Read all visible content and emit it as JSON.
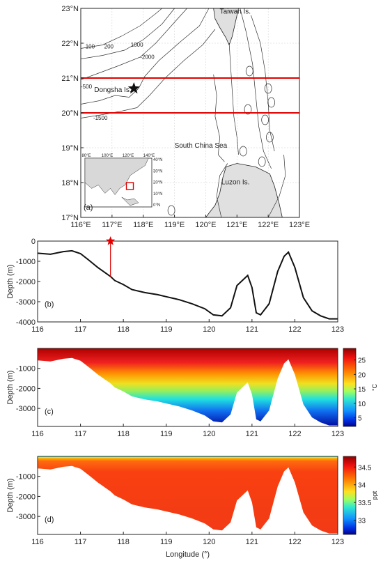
{
  "chart_data": [
    {
      "panel": "(a)",
      "type": "map",
      "x_ticks": [
        "116°E",
        "117°E",
        "118°E",
        "119°E",
        "120°E",
        "121°E",
        "122°E",
        "123°E"
      ],
      "y_ticks": [
        "17°N",
        "18°N",
        "19°N",
        "20°N",
        "21°N",
        "22°N",
        "23°N"
      ],
      "xlim": [
        116,
        123
      ],
      "ylim": [
        17,
        23
      ],
      "section_lines_lat": [
        21,
        20
      ],
      "station": {
        "label": "Dongsha Is.",
        "lon": 117.7,
        "lat": 20.7
      },
      "place_labels": [
        {
          "text": "Taiwan Is.",
          "lon": 120.45,
          "lat": 22.85
        },
        {
          "text": "South China Sea",
          "lon": 119.0,
          "lat": 19.0
        },
        {
          "text": "Luzon Is.",
          "lon": 120.5,
          "lat": 17.95
        }
      ],
      "contour_labels": [
        {
          "text": "100",
          "lon": 116.15,
          "lat": 21.85
        },
        {
          "text": "200",
          "lon": 116.75,
          "lat": 21.85
        },
        {
          "text": "1000",
          "lon": 117.6,
          "lat": 21.9
        },
        {
          "text": "-2000",
          "lon": 117.9,
          "lat": 21.55
        },
        {
          "text": "-500",
          "lon": 116.0,
          "lat": 20.7
        },
        {
          "text": "-1500",
          "lon": 116.4,
          "lat": 19.8
        }
      ],
      "inset": {
        "x_ticks": [
          "80°E",
          "100°E",
          "120°E",
          "140°E"
        ],
        "y_ticks": [
          "40°N",
          "30°N",
          "20°N",
          "10°N",
          "0°N"
        ]
      }
    },
    {
      "panel": "(b)",
      "type": "line",
      "ylabel": "Depth (m)",
      "xlim": [
        116,
        123
      ],
      "ylim": [
        -4000,
        0
      ],
      "x_ticks": [
        "116",
        "117",
        "118",
        "119",
        "120",
        "121",
        "122",
        "123"
      ],
      "y_ticks": [
        "0",
        "-1000",
        "-2000",
        "-3000",
        "-4000"
      ],
      "series": [
        {
          "x": [
            116.0,
            116.3,
            116.6,
            116.8,
            117.0,
            117.2,
            117.4,
            117.6,
            117.7,
            117.8,
            118.0,
            118.2,
            118.5,
            118.8,
            119.0,
            119.3,
            119.6,
            119.9,
            120.1,
            120.3,
            120.5,
            120.65,
            120.8,
            120.9,
            121.0,
            121.1,
            121.2,
            121.4,
            121.6,
            121.75,
            121.85,
            122.0,
            122.2,
            122.4,
            122.6,
            122.8,
            123.0
          ],
          "y": [
            -600,
            -650,
            -520,
            -480,
            -620,
            -950,
            -1300,
            -1600,
            -1750,
            -1950,
            -2150,
            -2400,
            -2550,
            -2650,
            -2750,
            -2900,
            -3100,
            -3350,
            -3650,
            -3700,
            -3300,
            -2200,
            -1900,
            -1700,
            -2300,
            -3550,
            -3650,
            -3100,
            -1500,
            -750,
            -550,
            -1300,
            -2800,
            -3450,
            -3700,
            -3850,
            -3850
          ]
        }
      ],
      "station": {
        "x": 117.7,
        "y": 0
      }
    },
    {
      "panel": "(c)",
      "type": "heatmap",
      "ylabel": "Depth (m)",
      "colorbar_unit": "°C",
      "colorbar_ticks": [
        "25",
        "20",
        "15",
        "10",
        "5"
      ],
      "clim": [
        2,
        29
      ],
      "x_ticks": [
        "116",
        "117",
        "118",
        "119",
        "120",
        "121",
        "122",
        "123"
      ],
      "y_ticks": [
        "-1000",
        "-2000",
        "-3000"
      ]
    },
    {
      "panel": "(d)",
      "type": "heatmap",
      "ylabel": "Depth (m)",
      "xlabel": "Longitude (°)",
      "colorbar_unit": "ppt",
      "colorbar_ticks": [
        "34.5",
        "34",
        "33.5",
        "33"
      ],
      "clim": [
        32.6,
        34.8
      ],
      "x_ticks": [
        "116",
        "117",
        "118",
        "119",
        "120",
        "121",
        "122",
        "123"
      ],
      "y_ticks": [
        "-1000",
        "-2000",
        "-3000"
      ]
    }
  ]
}
